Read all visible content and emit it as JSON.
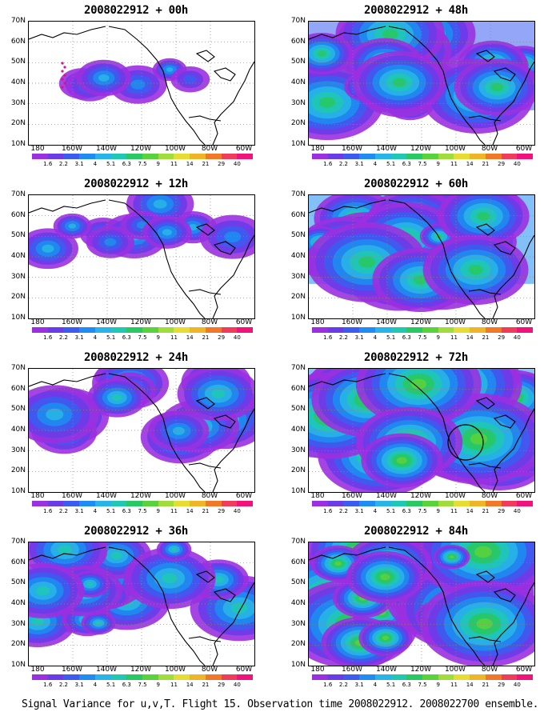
{
  "panels": [
    {
      "title": "2008022912 + 00h",
      "level": 0
    },
    {
      "title": "2008022912 + 12h",
      "level": 1
    },
    {
      "title": "2008022912 + 24h",
      "level": 2
    },
    {
      "title": "2008022912 + 36h",
      "level": 3
    },
    {
      "title": "2008022912 + 48h",
      "level": 4
    },
    {
      "title": "2008022912 + 60h",
      "level": 5
    },
    {
      "title": "2008022912 + 72h",
      "level": 6
    },
    {
      "title": "2008022912 + 84h",
      "level": 7
    }
  ],
  "lat_labels": [
    "70N",
    "60N",
    "50N",
    "40N",
    "30N",
    "20N",
    "10N"
  ],
  "lon_labels": [
    "180",
    "160W",
    "140W",
    "120W",
    "100W",
    "80W",
    "60W"
  ],
  "colorbar": {
    "labels": [
      "1.6",
      "2.2",
      "3.1",
      "4",
      "5.1",
      "6.3",
      "7.5",
      "9",
      "11",
      "14",
      "21",
      "29",
      "40"
    ],
    "colors": [
      "#9b30e0",
      "#6a3ce8",
      "#3c5cf0",
      "#1e8cf0",
      "#28b4e6",
      "#20c8b4",
      "#28c864",
      "#5ad23c",
      "#a0dc3c",
      "#e6dc32",
      "#f0b428",
      "#f07828",
      "#f03c5a",
      "#f0147a"
    ]
  },
  "caption": "Signal Variance for u,v,T. Flight 15. Observation time 2008022912. 2008022700 ensemble."
}
